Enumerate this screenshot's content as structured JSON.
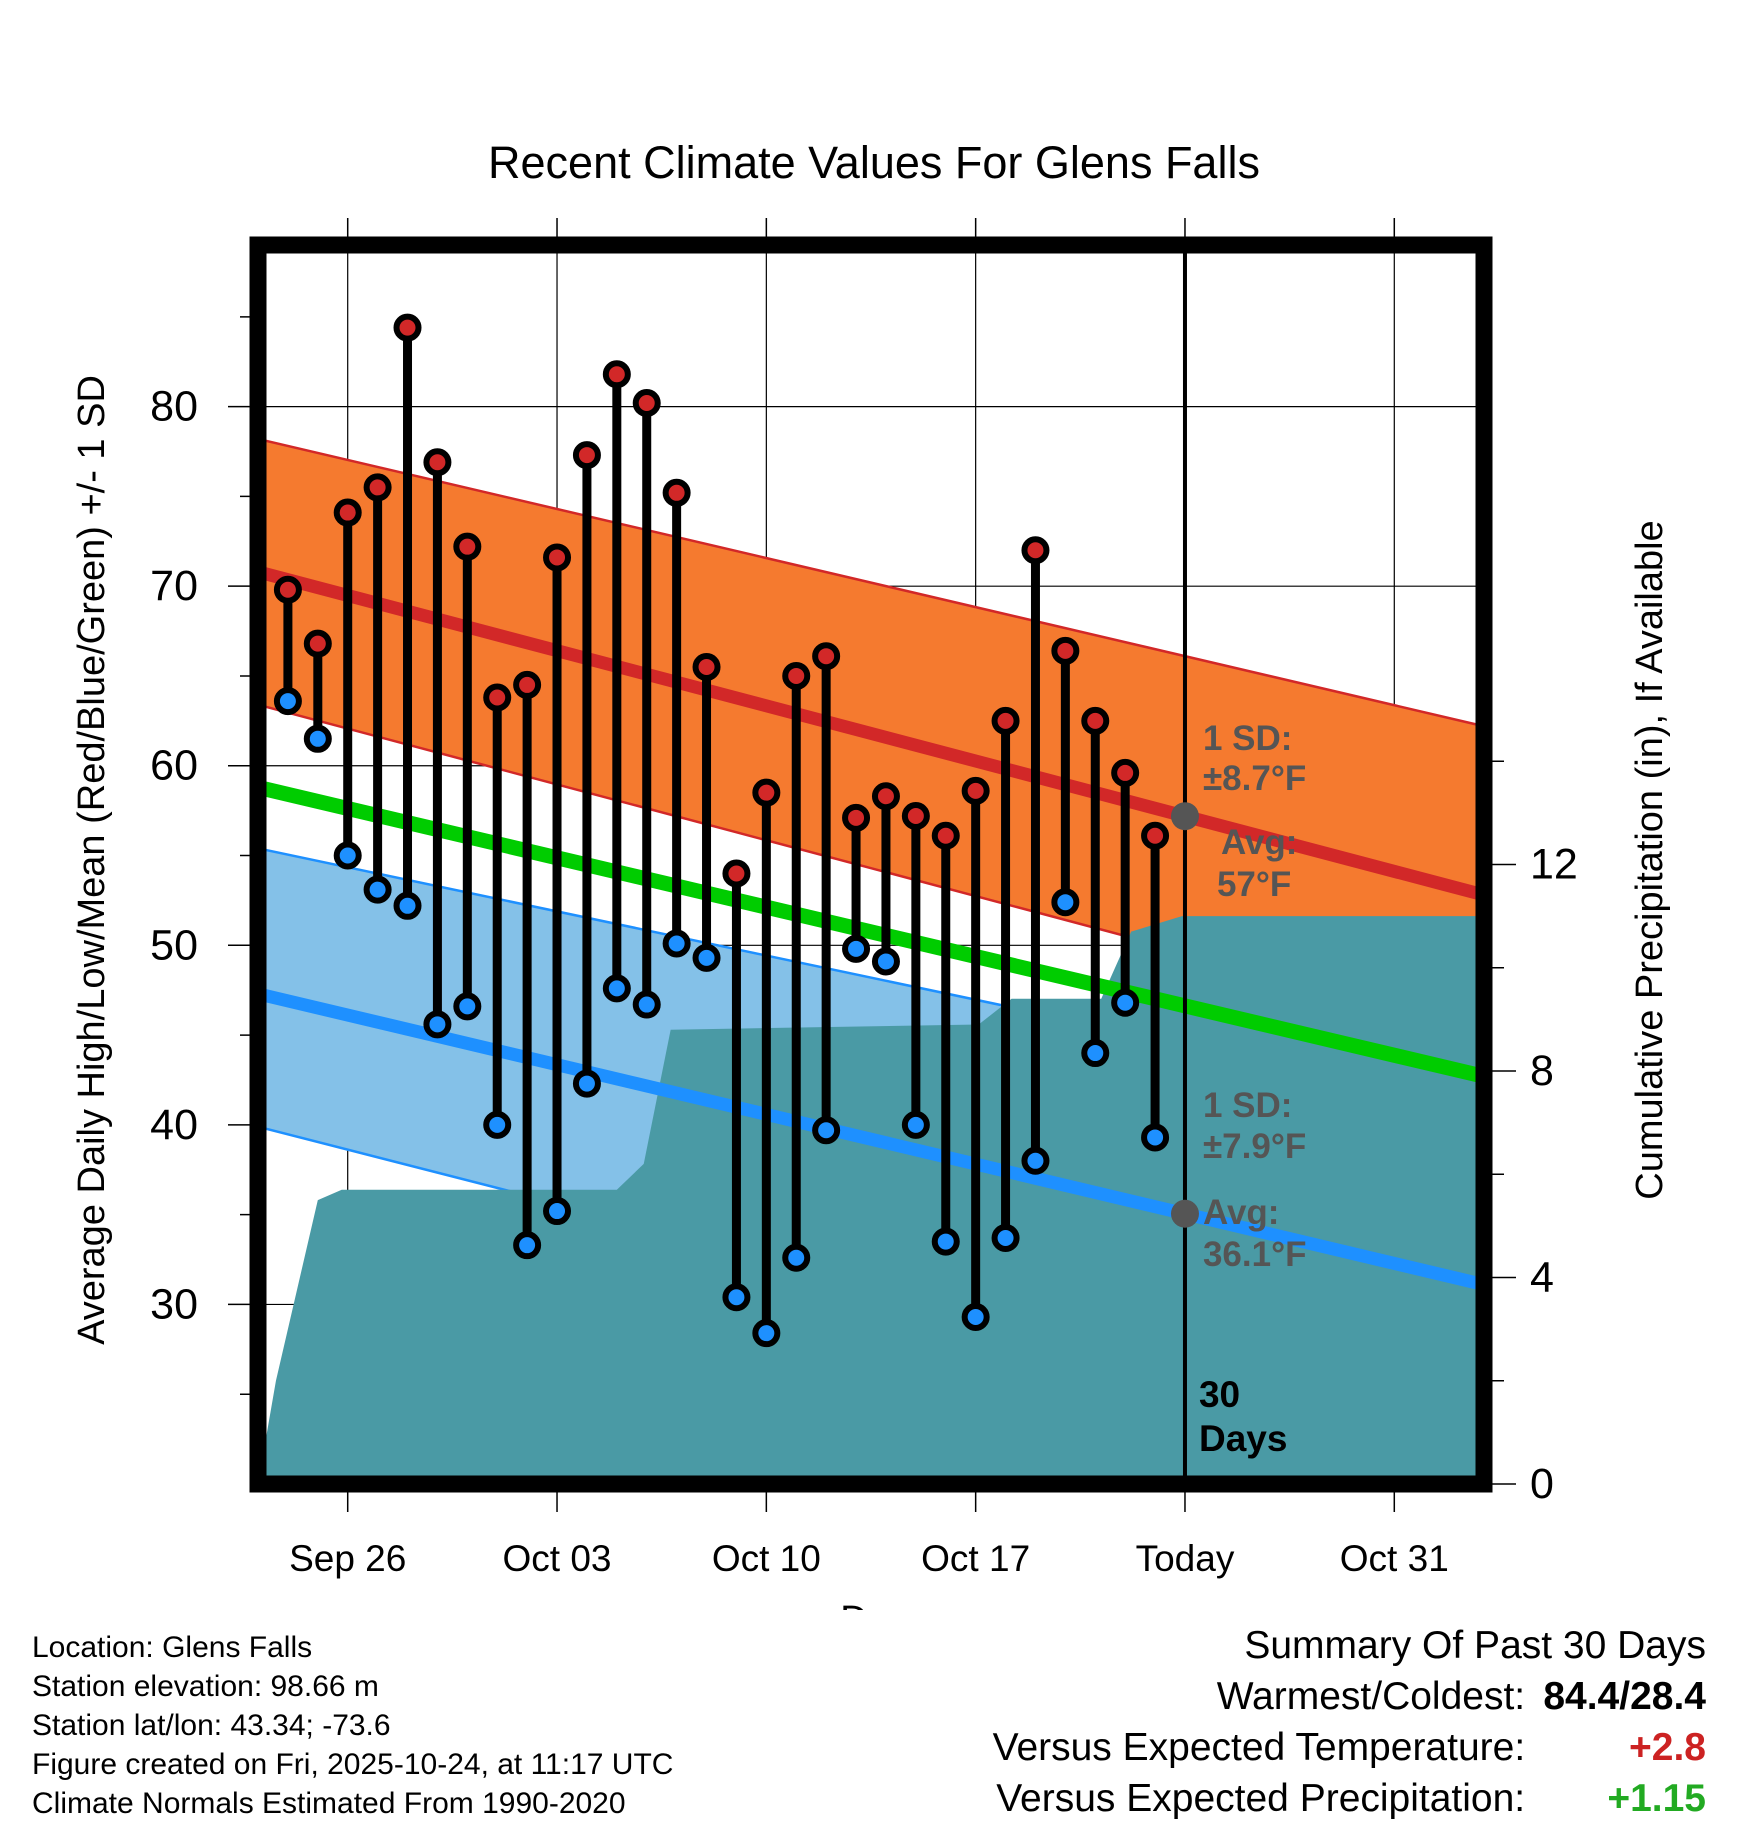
{
  "chart_data": {
    "type": "line",
    "title": "Recent Climate Values For Glens Falls",
    "xlabel": "Day",
    "ylabel": "Average Daily High/Low/Mean (Red/Blue/Green) +/- 1 SD",
    "y2label": "Cumulative Precipitation (in), If Available",
    "xlim": [
      -3,
      38
    ],
    "ylim": [
      20,
      89
    ],
    "y2lim": [
      0,
      24
    ],
    "x_ticks": [
      {
        "x": 0,
        "label": "Sep 26"
      },
      {
        "x": 7,
        "label": "Oct 03"
      },
      {
        "x": 14,
        "label": "Oct 10"
      },
      {
        "x": 21,
        "label": "Oct 17"
      },
      {
        "x": 28,
        "label": "Today"
      },
      {
        "x": 35,
        "label": "Oct 31"
      }
    ],
    "y_ticks": [
      30,
      40,
      50,
      60,
      70,
      80
    ],
    "y2_ticks": [
      0,
      4,
      8,
      12
    ],
    "days": [
      -2,
      -1,
      0,
      1,
      2,
      3,
      4,
      5,
      6,
      7,
      8,
      9,
      10,
      11,
      12,
      13,
      14,
      15,
      16,
      17,
      18,
      19,
      20,
      21,
      22,
      23,
      24,
      25,
      26,
      27
    ],
    "highs": [
      69.8,
      66.8,
      74.1,
      75.5,
      84.4,
      76.9,
      72.2,
      63.8,
      64.5,
      71.6,
      77.3,
      81.8,
      80.2,
      75.2,
      65.5,
      54.0,
      58.5,
      65.0,
      66.1,
      57.1,
      58.3,
      57.2,
      56.1,
      58.6,
      62.5,
      72.0,
      66.4,
      62.5,
      59.6,
      56.1
    ],
    "lows": [
      63.6,
      61.5,
      55.0,
      53.1,
      52.2,
      45.6,
      46.6,
      40.0,
      33.3,
      35.2,
      42.3,
      47.6,
      46.7,
      50.1,
      49.3,
      30.4,
      28.4,
      32.6,
      39.7,
      49.8,
      49.1,
      40.0,
      33.5,
      29.3,
      33.7,
      38.0,
      52.4,
      44.0,
      46.8,
      39.3
    ],
    "normal_high": {
      "x": [
        -3,
        38
      ],
      "y": [
        70.8,
        52.8
      ]
    },
    "normal_low": {
      "x": [
        -3,
        38
      ],
      "y": [
        47.3,
        31.1
      ]
    },
    "normal_mean": {
      "x": [
        -3,
        38
      ],
      "y": [
        58.8,
        42.7
      ]
    },
    "high_sd_band": {
      "upper_x": [
        -3,
        38
      ],
      "upper_y": [
        78.2,
        62.2
      ],
      "lower_x": [
        -3,
        31,
        35,
        38
      ],
      "lower_y": [
        63.4,
        48.3,
        47.0,
        45.3
      ]
    },
    "low_sd_band": {
      "upper_x": [
        -3,
        38
      ],
      "upper_y": [
        55.4,
        41.0
      ],
      "lower_x": [
        -3,
        31,
        38
      ],
      "lower_y": [
        39.9,
        25.4,
        23.5
      ]
    },
    "precip_cumulative": {
      "x": [
        -3,
        -2.4,
        -1.0,
        -0.2,
        9.0,
        9.9,
        10.8,
        21.1,
        22.2,
        25.2,
        26.2,
        27.9,
        28.3,
        38
      ],
      "y": [
        0,
        2.0,
        5.5,
        5.7,
        5.7,
        6.2,
        8.8,
        8.9,
        9.4,
        9.4,
        10.7,
        11.0,
        11.0,
        11.0
      ]
    },
    "today_x": 28,
    "annotations": {
      "high_sd": "1 SD:",
      "high_sd_value": "±8.7°F",
      "high_avg": "Avg:",
      "high_avg_value": "57°F",
      "low_sd": "1 SD:",
      "low_sd_value": "±7.9°F",
      "low_avg": "Avg:",
      "low_avg_value": "36.1°F",
      "period_num": "30",
      "period_unit": "Days"
    },
    "colors": {
      "high": "#d22828",
      "low": "#1e90ff",
      "mean": "#00cc00",
      "high_band": "#f57a2f",
      "low_band": "#84c1e8",
      "precip": "#4a9aa5",
      "annotation": "#555555"
    }
  },
  "metadata": {
    "location": "Location: Glens Falls",
    "elevation": "Station elevation: 98.66 m",
    "latlon": "Station lat/lon: 43.34; -73.6",
    "created": "Figure created on Fri, 2025-10-24, at 11:17 UTC",
    "normals": "Climate Normals Estimated From 1990-2020"
  },
  "summary": {
    "title": "Summary Of Past 30 Days",
    "warmest_coldest_label": "Warmest/Coldest:",
    "warmest_coldest_value": "84.4/28.4",
    "temp_label": "Versus Expected Temperature:",
    "temp_value": "+2.8",
    "precip_label": "Versus Expected Precipitation:",
    "precip_value": "+1.15"
  }
}
